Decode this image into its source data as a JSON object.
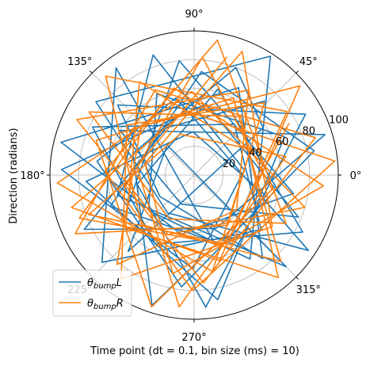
{
  "chart_data": {
    "type": "line",
    "projection": "polar",
    "xlabel": "Time point (dt = 0.1, bin size (ms) = 10)",
    "ylabel": "Direction (radians)",
    "angle_ticks": [
      "0°",
      "45°",
      "90°",
      "135°",
      "180°",
      "225°",
      "270°",
      "315°"
    ],
    "radial_ticks": [
      20,
      40,
      60,
      80,
      100
    ],
    "radial_tick_labels": [
      "20",
      "40",
      "60",
      "80",
      "100"
    ],
    "rlim": [
      0,
      100
    ],
    "grid": true,
    "legend_position": "lower-left",
    "series": [
      {
        "name": "θbumpL",
        "color": "#1f77b4",
        "points": [
          [
            0.8,
            72
          ],
          [
            2.1,
            38
          ],
          [
            3.6,
            85
          ],
          [
            5.1,
            40
          ],
          [
            0.3,
            95
          ],
          [
            2.6,
            60
          ],
          [
            4.3,
            22
          ],
          [
            5.9,
            78
          ],
          [
            1.4,
            50
          ],
          [
            3.1,
            92
          ],
          [
            4.7,
            65
          ],
          [
            0.1,
            35
          ],
          [
            1.9,
            88
          ],
          [
            3.4,
            55
          ],
          [
            5.5,
            90
          ],
          [
            2.3,
            28
          ],
          [
            4.0,
            70
          ],
          [
            0.6,
            58
          ],
          [
            1.2,
            80
          ],
          [
            2.8,
            45
          ],
          [
            4.4,
            95
          ],
          [
            6.0,
            52
          ],
          [
            1.6,
            30
          ],
          [
            3.2,
            75
          ],
          [
            4.9,
            88
          ],
          [
            0.4,
            68
          ],
          [
            2.0,
            62
          ],
          [
            3.8,
            40
          ],
          [
            5.3,
            70
          ],
          [
            1.0,
            98
          ],
          [
            2.5,
            85
          ],
          [
            4.1,
            32
          ],
          [
            5.7,
            95
          ],
          [
            1.8,
            55
          ],
          [
            3.0,
            68
          ],
          [
            4.6,
            78
          ],
          [
            0.2,
            85
          ],
          [
            1.5,
            72
          ],
          [
            3.5,
            62
          ],
          [
            5.0,
            48
          ],
          [
            2.2,
            92
          ],
          [
            3.9,
            88
          ],
          [
            5.6,
            60
          ],
          [
            0.9,
            45
          ],
          [
            2.7,
            78
          ],
          [
            4.2,
            55
          ],
          [
            5.8,
            85
          ],
          [
            1.3,
            62
          ],
          [
            3.3,
            40
          ],
          [
            4.8,
            92
          ],
          [
            0.5,
            88
          ],
          [
            2.4,
            72
          ],
          [
            3.7,
            28
          ],
          [
            5.4,
            75
          ],
          [
            1.1,
            68
          ],
          [
            2.9,
            95
          ],
          [
            4.5,
            42
          ],
          [
            6.1,
            70
          ],
          [
            1.7,
            80
          ],
          [
            3.6,
            52
          ]
        ]
      },
      {
        "name": "θbumpR",
        "color": "#ff7f0e",
        "points": [
          [
            1.3,
            85
          ],
          [
            3.0,
            40
          ],
          [
            4.6,
            92
          ],
          [
            0.2,
            65
          ],
          [
            1.9,
            30
          ],
          [
            3.5,
            78
          ],
          [
            5.2,
            55
          ],
          [
            0.7,
            96
          ],
          [
            2.4,
            50
          ],
          [
            4.0,
            82
          ],
          [
            5.6,
            38
          ],
          [
            1.0,
            70
          ],
          [
            2.7,
            90
          ],
          [
            4.3,
            45
          ],
          [
            6.0,
            80
          ],
          [
            1.6,
            58
          ],
          [
            3.2,
            95
          ],
          [
            4.9,
            68
          ],
          [
            0.4,
            42
          ],
          [
            2.1,
            75
          ],
          [
            3.8,
            60
          ],
          [
            5.4,
            92
          ],
          [
            0.9,
            52
          ],
          [
            2.6,
            85
          ],
          [
            4.2,
            35
          ],
          [
            5.8,
            72
          ],
          [
            1.4,
            95
          ],
          [
            3.1,
            62
          ],
          [
            4.7,
            80
          ],
          [
            0.1,
            98
          ],
          [
            1.7,
            45
          ],
          [
            3.4,
            88
          ],
          [
            5.0,
            62
          ],
          [
            0.6,
            78
          ],
          [
            2.3,
            92
          ],
          [
            3.9,
            50
          ],
          [
            5.5,
            85
          ],
          [
            1.1,
            60
          ],
          [
            2.8,
            72
          ],
          [
            4.4,
            96
          ],
          [
            6.1,
            55
          ],
          [
            1.5,
            82
          ],
          [
            3.3,
            48
          ],
          [
            4.8,
            75
          ],
          [
            0.3,
            88
          ],
          [
            2.0,
            65
          ],
          [
            3.6,
            92
          ],
          [
            5.3,
            42
          ],
          [
            0.8,
            70
          ],
          [
            2.5,
            58
          ],
          [
            4.1,
            88
          ],
          [
            5.7,
            65
          ],
          [
            1.2,
            92
          ],
          [
            2.9,
            35
          ],
          [
            4.5,
            70
          ],
          [
            6.2,
            90
          ],
          [
            1.8,
            62
          ],
          [
            3.5,
            85
          ],
          [
            5.1,
            52
          ],
          [
            0.5,
            75
          ]
        ]
      }
    ]
  }
}
